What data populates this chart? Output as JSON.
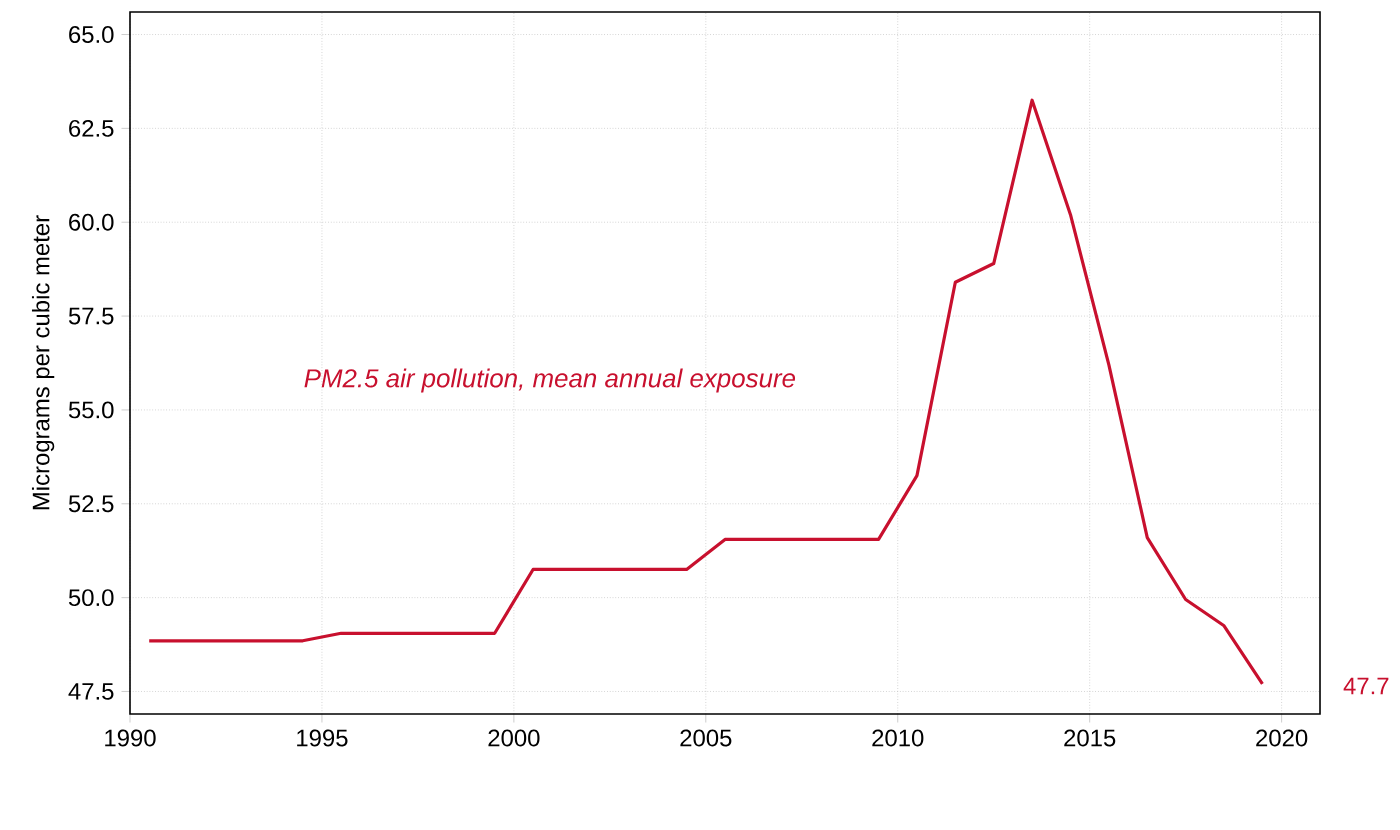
{
  "chart_data": {
    "type": "line",
    "ylabel": "Micrograms per cubic meter",
    "x": [
      1990.5,
      1991.5,
      1992.5,
      1993.5,
      1994.5,
      1995.5,
      1996.5,
      1997.5,
      1998.5,
      1999.5,
      2000.5,
      2001.5,
      2002.5,
      2003.5,
      2004.5,
      2005.5,
      2006.5,
      2007.5,
      2008.5,
      2009.5,
      2010.5,
      2011.5,
      2012.5,
      2013.5,
      2014.5,
      2015.5,
      2016.5,
      2017.5,
      2018.5,
      2019.5
    ],
    "series": [
      {
        "name": "*PM2.5 air pollution, mean annual exposure*",
        "color": "#c8102e",
        "values": [
          48.85,
          48.85,
          48.85,
          48.85,
          48.85,
          49.05,
          49.05,
          49.05,
          49.05,
          49.05,
          50.75,
          50.75,
          50.75,
          50.75,
          50.75,
          51.55,
          51.55,
          51.55,
          51.55,
          51.55,
          53.25,
          58.4,
          58.9,
          63.25,
          60.2,
          56.2,
          51.6,
          49.95,
          49.25,
          47.7
        ]
      }
    ],
    "xlim": [
      1990,
      2021
    ],
    "ylim": [
      46.9,
      65.6
    ],
    "xticks": [
      1990,
      1995,
      2000,
      2005,
      2010,
      2015,
      2020
    ],
    "yticks": [
      {
        "value": 47.5,
        "label": "47.5"
      },
      {
        "value": 50,
        "label": "50.0"
      },
      {
        "value": 52.5,
        "label": "52.5"
      },
      {
        "value": 55,
        "label": "55.0"
      },
      {
        "value": 57.5,
        "label": "57.5"
      },
      {
        "value": 60,
        "label": "60.0"
      },
      {
        "value": 62.5,
        "label": "62.5"
      },
      {
        "value": 65,
        "label": "65.0"
      }
    ],
    "grid": true,
    "line_style": "solid",
    "marker": "none",
    "annotations": [
      "47.7"
    ]
  }
}
